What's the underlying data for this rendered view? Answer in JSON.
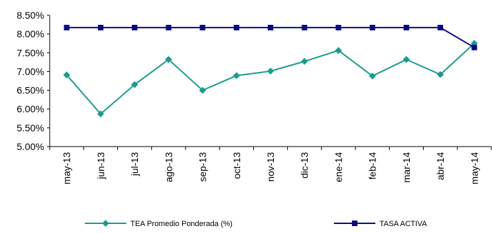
{
  "chart_data": {
    "type": "line",
    "categories": [
      "may-13",
      "jun-13",
      "jul-13",
      "ago-13",
      "sep-13",
      "oct-13",
      "nov-13",
      "dic-13",
      "ene-14",
      "feb-14",
      "mar-14",
      "abr-14",
      "may-14"
    ],
    "series": [
      {
        "name": "TEA Promedio Ponderada (%)",
        "values": [
          6.91,
          5.87,
          6.65,
          7.32,
          6.5,
          6.89,
          7.01,
          7.27,
          7.56,
          6.88,
          7.32,
          6.92,
          7.75
        ],
        "color": "#1a9b8e",
        "marker": "diamond"
      },
      {
        "name": "TASA ACTIVA",
        "values": [
          8.17,
          8.17,
          8.17,
          8.17,
          8.17,
          8.17,
          8.17,
          8.17,
          8.17,
          8.17,
          8.17,
          8.17,
          7.64
        ],
        "color": "#0a0a80",
        "marker": "square"
      }
    ],
    "y_ticks": [
      "5.00%",
      "5.50%",
      "6.00%",
      "6.50%",
      "7.00%",
      "7.50%",
      "8.00%",
      "8.50%"
    ],
    "ylim": [
      5.0,
      8.5
    ],
    "grid": false,
    "legend_position": "bottom"
  }
}
